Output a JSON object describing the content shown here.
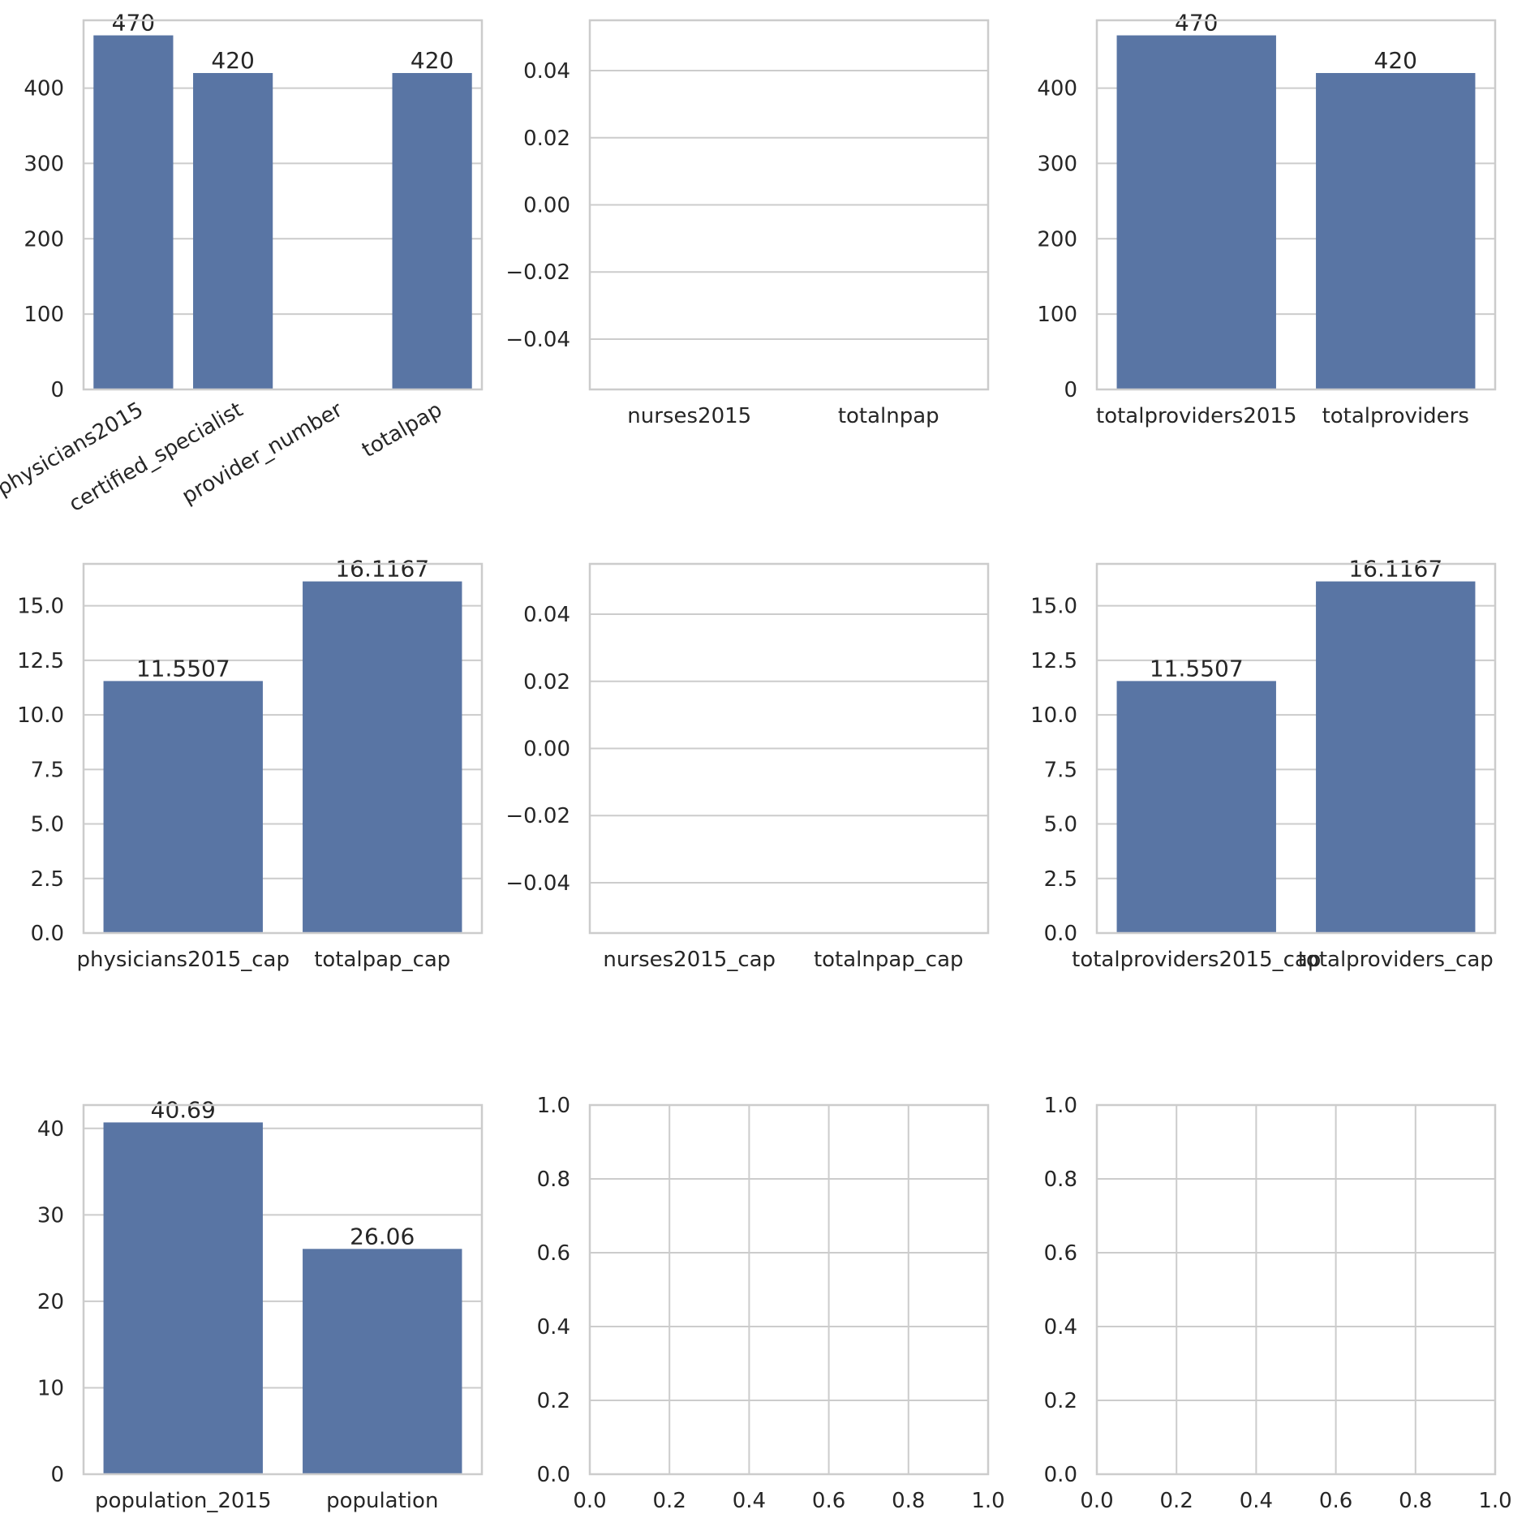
{
  "bar_color": "#5975a4",
  "grid_color": "#cccccc",
  "frame_color": "#cccccc",
  "text_color": "#262626",
  "chart_data": [
    {
      "type": "bar",
      "categories": [
        "physicians2015",
        "certified_specialist",
        "provider_number",
        "totalpap"
      ],
      "values": [
        470,
        420,
        null,
        420
      ],
      "value_labels": [
        "470",
        "420",
        "",
        "420"
      ],
      "ylim": [
        0,
        490
      ],
      "yticks": [
        "0",
        "100",
        "200",
        "300",
        "400"
      ],
      "ytick_values": [
        0,
        100,
        200,
        300,
        400
      ],
      "rotate_xticks": true,
      "grid": "y"
    },
    {
      "type": "bar",
      "categories": [
        "nurses2015",
        "totalnpap"
      ],
      "values": [
        null,
        null
      ],
      "value_labels": [
        "",
        ""
      ],
      "ylim": [
        -0.055,
        0.055
      ],
      "yticks": [
        "−0.04",
        "−0.02",
        "0.00",
        "0.02",
        "0.04"
      ],
      "ytick_values": [
        -0.04,
        -0.02,
        0,
        0.02,
        0.04
      ],
      "grid": "y"
    },
    {
      "type": "bar",
      "categories": [
        "totalproviders2015",
        "totalproviders"
      ],
      "values": [
        470,
        420
      ],
      "value_labels": [
        "470",
        "420"
      ],
      "ylim": [
        0,
        490
      ],
      "yticks": [
        "0",
        "100",
        "200",
        "300",
        "400"
      ],
      "ytick_values": [
        0,
        100,
        200,
        300,
        400
      ],
      "grid": "y"
    },
    {
      "type": "bar",
      "categories": [
        "physicians2015_cap",
        "totalpap_cap"
      ],
      "values": [
        11.5507,
        16.1167
      ],
      "value_labels": [
        "11.5507",
        "16.1167"
      ],
      "ylim": [
        0,
        16.92
      ],
      "yticks": [
        "0.0",
        "2.5",
        "5.0",
        "7.5",
        "10.0",
        "12.5",
        "15.0"
      ],
      "ytick_values": [
        0,
        2.5,
        5,
        7.5,
        10,
        12.5,
        15
      ],
      "grid": "y"
    },
    {
      "type": "bar",
      "categories": [
        "nurses2015_cap",
        "totalnpap_cap"
      ],
      "values": [
        null,
        null
      ],
      "value_labels": [
        "",
        ""
      ],
      "ylim": [
        -0.055,
        0.055
      ],
      "yticks": [
        "−0.04",
        "−0.02",
        "0.00",
        "0.02",
        "0.04"
      ],
      "ytick_values": [
        -0.04,
        -0.02,
        0,
        0.02,
        0.04
      ],
      "grid": "y"
    },
    {
      "type": "bar",
      "categories": [
        "totalproviders2015_cap",
        "totalproviders_cap"
      ],
      "values": [
        11.5507,
        16.1167
      ],
      "value_labels": [
        "11.5507",
        "16.1167"
      ],
      "ylim": [
        0,
        16.92
      ],
      "yticks": [
        "0.0",
        "2.5",
        "5.0",
        "7.5",
        "10.0",
        "12.5",
        "15.0"
      ],
      "ytick_values": [
        0,
        2.5,
        5,
        7.5,
        10,
        12.5,
        15
      ],
      "grid": "y"
    },
    {
      "type": "bar",
      "categories": [
        "population_2015",
        "population"
      ],
      "values": [
        40.69,
        26.06
      ],
      "value_labels": [
        "40.69",
        "26.06"
      ],
      "ylim": [
        0,
        42.7
      ],
      "yticks": [
        "0",
        "10",
        "20",
        "30",
        "40"
      ],
      "ytick_values": [
        0,
        10,
        20,
        30,
        40
      ],
      "grid": "y"
    },
    {
      "type": "scatter",
      "empty": true,
      "xlim": [
        0,
        1
      ],
      "ylim": [
        0,
        1
      ],
      "xticks": [
        "0.0",
        "0.2",
        "0.4",
        "0.6",
        "0.8",
        "1.0"
      ],
      "xtick_values": [
        0,
        0.2,
        0.4,
        0.6,
        0.8,
        1
      ],
      "yticks": [
        "0.0",
        "0.2",
        "0.4",
        "0.6",
        "0.8",
        "1.0"
      ],
      "ytick_values": [
        0,
        0.2,
        0.4,
        0.6,
        0.8,
        1
      ],
      "grid": "both"
    },
    {
      "type": "scatter",
      "empty": true,
      "xlim": [
        0,
        1
      ],
      "ylim": [
        0,
        1
      ],
      "xticks": [
        "0.0",
        "0.2",
        "0.4",
        "0.6",
        "0.8",
        "1.0"
      ],
      "xtick_values": [
        0,
        0.2,
        0.4,
        0.6,
        0.8,
        1
      ],
      "yticks": [
        "0.0",
        "0.2",
        "0.4",
        "0.6",
        "0.8",
        "1.0"
      ],
      "ytick_values": [
        0,
        0.2,
        0.4,
        0.6,
        0.8,
        1
      ],
      "grid": "both"
    }
  ]
}
